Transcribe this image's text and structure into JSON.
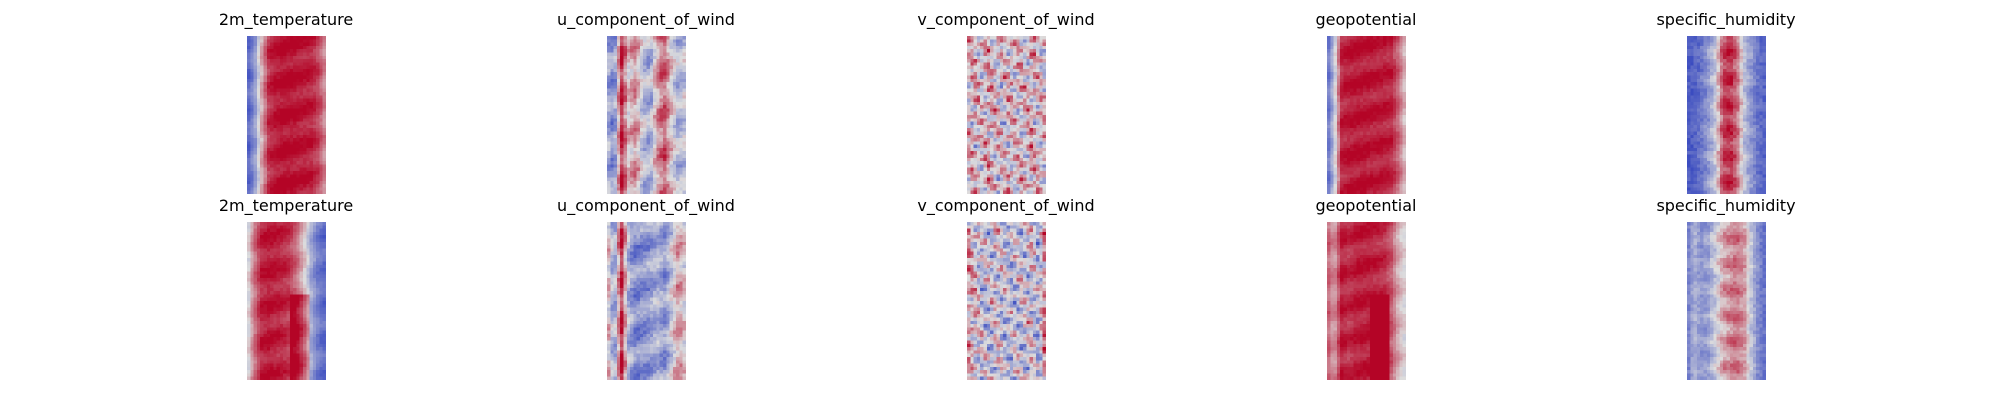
{
  "chart_data": {
    "type": "heatmap",
    "colormap": "coolwarm",
    "colors": {
      "cold": "#3b4cc0",
      "neutral": "#dddddd",
      "warm": "#b40426"
    },
    "axes": "off",
    "rows": [
      {
        "panels": [
          {
            "title": "2m_temperature",
            "pattern": "warm-band",
            "column_profile": [
              -0.85,
              -0.55,
              0.2,
              0.8,
              0.92,
              0.95,
              0.95,
              0.92,
              0.9,
              0.88,
              0.7,
              0.35
            ]
          },
          {
            "title": "u_component_of_wind",
            "pattern": "streaky",
            "column_profile": [
              -0.3,
              -0.6,
              0.85,
              0.1,
              0.4,
              -0.2,
              -0.35,
              0.3,
              0.6,
              0.05,
              -0.3,
              -0.1
            ]
          },
          {
            "title": "v_component_of_wind",
            "pattern": "patchy",
            "column_profile": [
              0.1,
              0.15,
              0.05,
              0.2,
              0.1,
              0.0,
              0.15,
              0.05,
              0.1,
              0.2,
              0.05,
              0.1
            ]
          },
          {
            "title": "geopotential",
            "pattern": "warm-band",
            "column_profile": [
              -0.8,
              -0.2,
              0.85,
              0.9,
              0.92,
              0.92,
              0.9,
              0.9,
              0.88,
              0.85,
              0.55,
              0.1
            ]
          },
          {
            "title": "specific_humidity",
            "pattern": "central-spine",
            "column_profile": [
              -0.9,
              -0.85,
              -0.7,
              -0.45,
              -0.1,
              0.7,
              0.85,
              0.5,
              -0.2,
              -0.5,
              -0.75,
              -0.85
            ]
          }
        ]
      },
      {
        "panels": [
          {
            "title": "2m_temperature",
            "pattern": "warm-band",
            "column_profile": [
              -0.1,
              0.5,
              0.85,
              0.92,
              0.88,
              0.85,
              0.75,
              0.5,
              0.1,
              -0.4,
              -0.7,
              -0.8
            ]
          },
          {
            "title": "u_component_of_wind",
            "pattern": "streaky",
            "column_profile": [
              0.3,
              -0.5,
              0.9,
              -0.3,
              -0.6,
              -0.5,
              -0.45,
              -0.3,
              -0.5,
              -0.1,
              0.35,
              0.0
            ]
          },
          {
            "title": "v_component_of_wind",
            "pattern": "patchy",
            "column_profile": [
              0.3,
              0.1,
              -0.1,
              -0.15,
              0.0,
              -0.1,
              -0.2,
              -0.15,
              -0.1,
              0.0,
              -0.3,
              0.6
            ]
          },
          {
            "title": "geopotential",
            "pattern": "warm-band",
            "column_profile": [
              0.6,
              0.3,
              0.9,
              0.8,
              0.88,
              0.9,
              0.88,
              0.85,
              0.8,
              0.6,
              0.2,
              0.0
            ]
          },
          {
            "title": "specific_humidity",
            "pattern": "central-spine",
            "column_profile": [
              -0.7,
              -0.3,
              -0.5,
              -0.4,
              -0.1,
              0.25,
              0.4,
              0.5,
              0.3,
              -0.2,
              -0.6,
              -0.75
            ]
          }
        ]
      }
    ]
  }
}
